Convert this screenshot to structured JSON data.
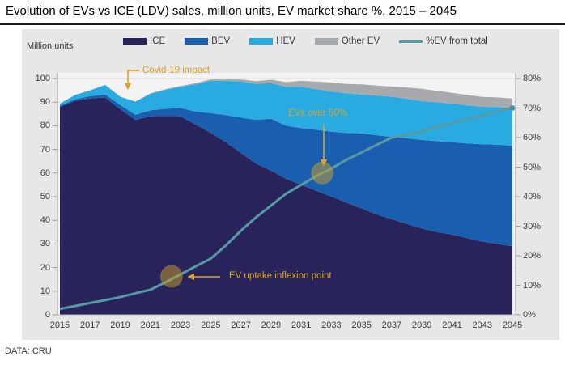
{
  "title": "Evolution of EVs vs ICE (LDV) sales, million units, EV market share %, 2015 – 2045",
  "labels": {
    "million_units": "Million units"
  },
  "footer": {
    "source": "DATA: CRU"
  },
  "colors": {
    "ice": "#29235C",
    "bev": "#1A5FAF",
    "hev": "#29ABE2",
    "other_ev": "#A7A9AC",
    "ev_share_line": "#579AA3",
    "ev_share_dot": "#4C8B94",
    "annotation": "#D9A427",
    "marker_fill": "#C9A227",
    "panel_bg": "#E7E7E7",
    "plot_bg": "#F3F3F3",
    "grid": "#DCDCDC",
    "axis": "#9B9B9B",
    "axis_bottom": "#B9B9B9",
    "tick_text": "#3F3F3F"
  },
  "legend": [
    {
      "label": "ICE",
      "color_key": "ice",
      "type": "box"
    },
    {
      "label": "BEV",
      "color_key": "bev",
      "type": "box"
    },
    {
      "label": "HEV",
      "color_key": "hev",
      "type": "box"
    },
    {
      "label": "Other EV",
      "color_key": "other_ev",
      "type": "box"
    },
    {
      "label": "%EV from total",
      "color_key": "ev_share_line",
      "type": "line"
    }
  ],
  "annotations": {
    "covid": {
      "text": "Covid-19 impact",
      "target_year": 2019.4
    },
    "inflexion": {
      "text": "EV uptake inflexion point",
      "marker_year": 2022.4,
      "marker_percent": 13
    },
    "over50": {
      "text": "EVs over 50%",
      "marker_year": 2032.4,
      "marker_percent": 48
    }
  },
  "chart_data": {
    "type": "area",
    "title": "Evolution of EVs vs ICE (LDV) sales, million units, EV market share %, 2015 – 2045",
    "x_years": [
      2015,
      2016,
      2017,
      2018,
      2019,
      2020,
      2021,
      2022,
      2023,
      2024,
      2025,
      2026,
      2027,
      2028,
      2029,
      2030,
      2031,
      2032,
      2033,
      2034,
      2035,
      2036,
      2037,
      2038,
      2039,
      2040,
      2041,
      2042,
      2043,
      2044,
      2045
    ],
    "stacked": true,
    "series": [
      {
        "name": "ICE",
        "color_key": "ice",
        "values": [
          88,
          90.5,
          91.5,
          92,
          87,
          82.5,
          84,
          84.2,
          84,
          80.5,
          77,
          73,
          68.5,
          64,
          61,
          57.5,
          55,
          52.5,
          50,
          47.5,
          45,
          42.5,
          40.5,
          38.5,
          36.5,
          35,
          34,
          32.5,
          31,
          30,
          29
        ]
      },
      {
        "name": "BEV",
        "color_key": "bev",
        "values": [
          0.4,
          0.7,
          1,
          1.3,
          1.8,
          2.2,
          2.5,
          3,
          3.5,
          5.5,
          8.3,
          11.5,
          15,
          18.5,
          22,
          22.5,
          24,
          25.8,
          27.5,
          29.5,
          31.8,
          33.5,
          34.8,
          36.2,
          37.5,
          38.5,
          39,
          40,
          41.2,
          42,
          42.5
        ]
      },
      {
        "name": "HEV",
        "color_key": "hev",
        "values": [
          0.9,
          1.8,
          2.5,
          4,
          3.5,
          5.5,
          7,
          8,
          9,
          11.5,
          13.7,
          14.5,
          15.3,
          15.2,
          15,
          16.5,
          17.5,
          17.2,
          17,
          16.7,
          16.4,
          16.7,
          17,
          16.7,
          16.4,
          16.4,
          16.4,
          16.1,
          15.8,
          15.9,
          16
        ]
      },
      {
        "name": "Other EV",
        "color_key": "other_ev",
        "values": [
          0,
          0,
          0,
          0,
          0,
          0,
          0.2,
          0.3,
          0.3,
          0.5,
          0.7,
          0.8,
          0.8,
          1.2,
          1.5,
          2,
          2.5,
          3.2,
          3.8,
          4,
          4.3,
          4.3,
          4.3,
          4.8,
          5.2,
          4.9,
          4.5,
          4.4,
          4.2,
          4.1,
          4
        ]
      }
    ],
    "line_series": {
      "name": "%EV from total",
      "axis": "right",
      "unit": "%",
      "color_key": "ev_share_line",
      "values": [
        2,
        3,
        4,
        5,
        6,
        7.3,
        8.5,
        11,
        13.7,
        16.4,
        19,
        23.5,
        28.5,
        33,
        37,
        41,
        44,
        47,
        49.5,
        52.5,
        55,
        57.5,
        60,
        61,
        62,
        63.5,
        65,
        66.3,
        67.5,
        68.8,
        70
      ]
    },
    "axes": {
      "left": {
        "label": "Million units",
        "min": 0,
        "max": 100,
        "ticks": [
          0,
          10,
          20,
          30,
          40,
          50,
          60,
          70,
          80,
          90,
          100
        ]
      },
      "right": {
        "min": 0,
        "max": 80,
        "tick_labels": [
          "0%",
          "10%",
          "20%",
          "30%",
          "40%",
          "50%",
          "60%",
          "70%",
          "80%"
        ]
      },
      "x": {
        "tick_years": [
          2015,
          2017,
          2019,
          2021,
          2023,
          2025,
          2027,
          2029,
          2031,
          2033,
          2035,
          2037,
          2039,
          2041,
          2043,
          2045
        ]
      }
    },
    "grid": "horizontal",
    "legend_position": "top"
  }
}
